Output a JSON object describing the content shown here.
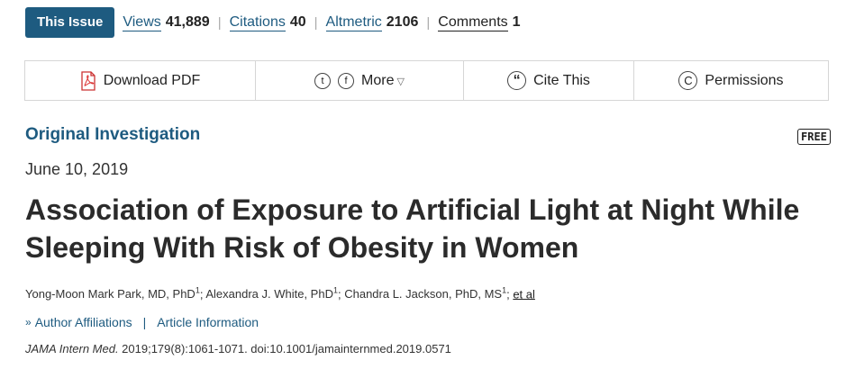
{
  "metrics": {
    "issue_label": "This Issue",
    "views_label": "Views",
    "views_value": "41,889",
    "citations_label": "Citations",
    "citations_value": "40",
    "altmetric_label": "Altmetric",
    "altmetric_value": "2106",
    "comments_label": "Comments",
    "comments_value": "1",
    "separator": "|"
  },
  "toolbar": {
    "download_label": "Download PDF",
    "more_label": "More",
    "more_caret": "▽",
    "twitter_glyph": "t",
    "facebook_glyph": "f",
    "cite_label": "Cite This",
    "cite_glyph": "“",
    "permissions_label": "Permissions",
    "permissions_glyph": "C"
  },
  "article": {
    "section": "Original Investigation",
    "free_badge": "FREE",
    "date": "June 10, 2019",
    "title": "Association of Exposure to Artificial Light at Night While Sleeping With Risk of Obesity in Women",
    "authors": [
      {
        "name": "Yong-Moon Mark Park, MD, PhD",
        "sup": "1",
        "sep": "; "
      },
      {
        "name": "Alexandra J. White, PhD",
        "sup": "1",
        "sep": "; "
      },
      {
        "name": "Chandra L. Jackson, PhD, MS",
        "sup": "1",
        "sep": "; "
      }
    ],
    "et_al": "et al",
    "affiliations_label": "Author Affiliations",
    "article_info_label": "Article Information",
    "link_separator": "|",
    "chevron": "»",
    "journal": "JAMA Intern Med.",
    "citation_rest": " 2019;179(8):1061-1071. doi:10.1001/jamainternmed.2019.0571"
  },
  "colors": {
    "accent": "#1e5b80",
    "pdf_red": "#d33"
  }
}
